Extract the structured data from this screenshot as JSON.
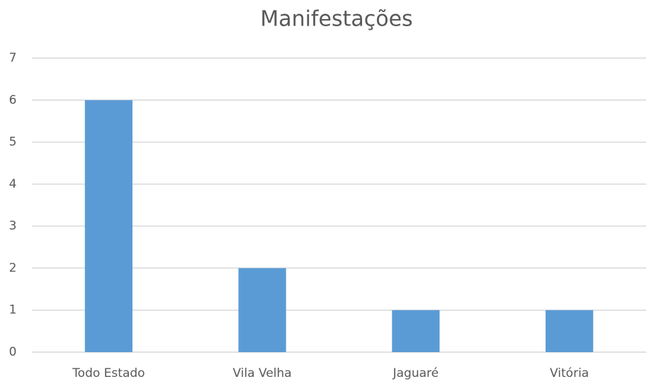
{
  "chart_data": {
    "type": "bar",
    "title": "Manifestações",
    "categories": [
      "Todo Estado",
      "Vila Velha",
      "Jaguaré",
      "Vitória"
    ],
    "values": [
      6,
      2,
      1,
      1
    ],
    "color": "#5b9bd5",
    "ylim": [
      0,
      7
    ],
    "yticks": [
      0,
      1,
      2,
      3,
      4,
      5,
      6,
      7
    ],
    "grid": true
  }
}
